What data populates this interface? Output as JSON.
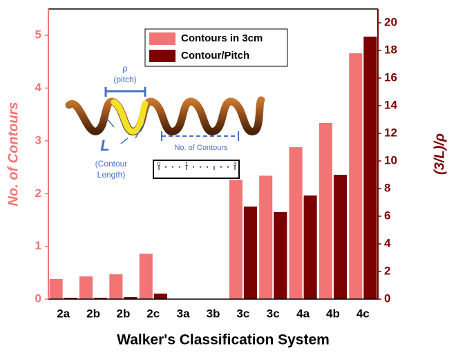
{
  "chart_data": {
    "type": "bar",
    "xlabel": "Walker's Classification System",
    "ylabel": "No. of Contours",
    "y2label": "(3/L)/ρ",
    "categories": [
      "2a",
      "2b",
      "2b",
      "2c",
      "3a",
      "3b",
      "3c",
      "3c",
      "4a",
      "4b",
      "4c"
    ],
    "series": [
      {
        "name": "Contours in 3cm",
        "color": "#f27474",
        "values": [
          0.38,
          0.43,
          0.47,
          0.86,
          0,
          0,
          2.26,
          2.34,
          2.88,
          3.34,
          4.66
        ]
      },
      {
        "name": "Contour/Pitch",
        "color": "#7a0000",
        "axis": "y2",
        "values": [
          0.1,
          0.1,
          0.15,
          0.4,
          0,
          0,
          6.7,
          6.3,
          7.5,
          9.0,
          19.0
        ]
      }
    ],
    "ylim": [
      0,
      5.5
    ],
    "yticks": [
      0,
      1,
      2,
      3,
      4,
      5
    ],
    "y2lim": [
      0,
      21
    ],
    "y2ticks": [
      0,
      2,
      4,
      6,
      8,
      10,
      12,
      14,
      16,
      18,
      20
    ],
    "ycolor": "#f27474",
    "y2color": "#7a0000",
    "legend": "upper center",
    "annotations": {
      "pitch_symbol": "ρ",
      "pitch": "(pitch)",
      "length_symbol": "L",
      "length_1": "(Contour",
      "length_2": "Length)",
      "contours": "No. of Contours",
      "ruler": [
        "0",
        "1",
        "3"
      ]
    }
  }
}
